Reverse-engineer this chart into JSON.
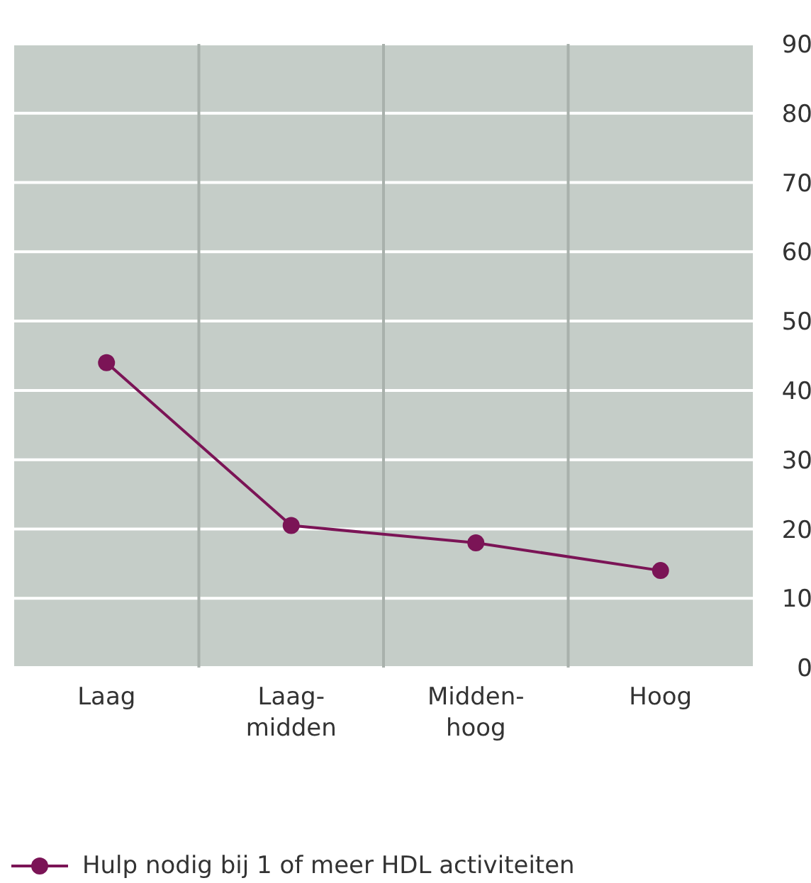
{
  "chart_data": {
    "type": "line",
    "categories": [
      "Laag",
      "Laag-midden",
      "Midden-hoog",
      "Hoog"
    ],
    "series": [
      {
        "name": "Hulp nodig bij 1 of meer HDL activiteiten",
        "color": "#7b1456",
        "values": [
          44,
          20.5,
          18,
          14
        ]
      }
    ],
    "ylim": [
      0,
      90
    ],
    "yticks": [
      0,
      10,
      20,
      30,
      40,
      50,
      60,
      70,
      80,
      90
    ],
    "grid": true,
    "legend": "bottom left",
    "marker": "circle"
  }
}
